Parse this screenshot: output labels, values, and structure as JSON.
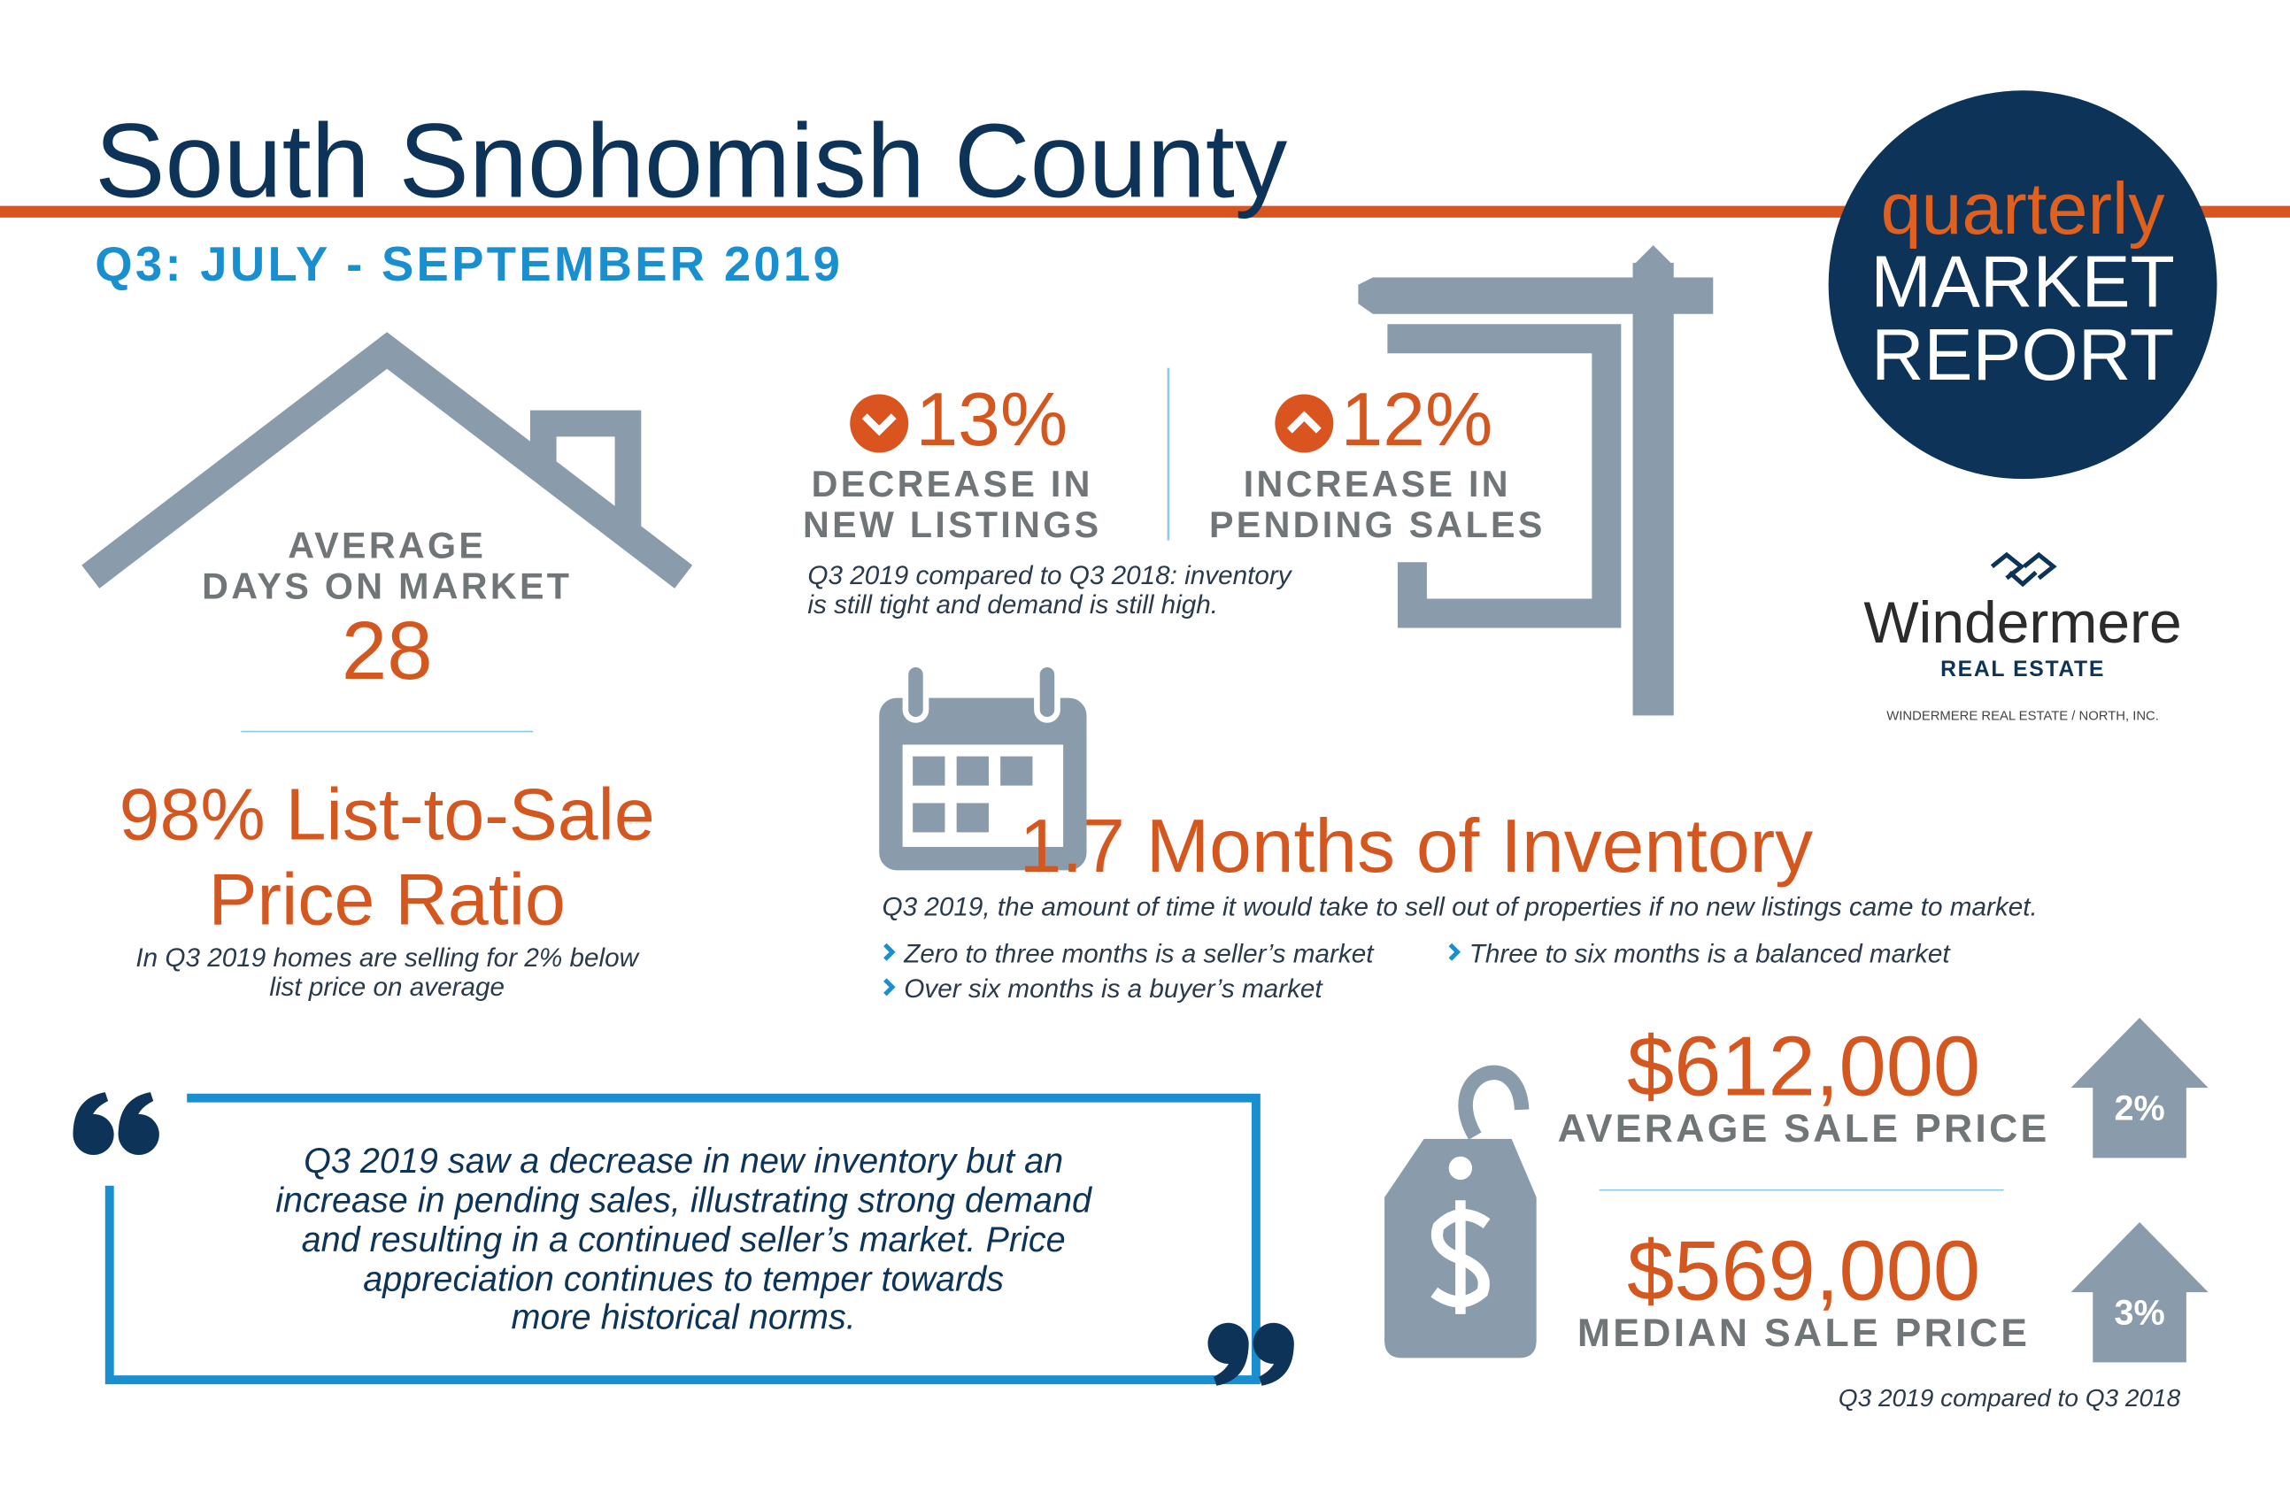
{
  "header": {
    "title": "South Snohomish County",
    "subtitle": "Q3: JULY - SEPTEMBER 2019"
  },
  "badge": {
    "line1": "quarterly",
    "line2": "MARKET",
    "line3": "REPORT"
  },
  "brand": {
    "name": "Windermere",
    "tagline": "REAL ESTATE",
    "office": "WINDERMERE REAL ESTATE / NORTH, INC."
  },
  "days_on_market": {
    "label_line1": "AVERAGE",
    "label_line2": "DAYS ON MARKET",
    "value": "28"
  },
  "list_to_sale": {
    "line1": "98% List-to-Sale",
    "line2": "Price Ratio",
    "note_line1": "In Q3 2019 homes are selling for 2% below",
    "note_line2": "list price on average"
  },
  "listings": [
    {
      "value": "13%",
      "label_line1": "DECREASE IN",
      "label_line2": "NEW LISTINGS"
    },
    {
      "value": "12%",
      "label_line1": "INCREASE IN",
      "label_line2": "PENDING SALES"
    }
  ],
  "listings_note": [
    "Q3 2019 compared to Q3 2018: inventory",
    "is still tight and demand is still high."
  ],
  "inventory": {
    "title": "1.7 Months of Inventory",
    "note": "Q3 2019, the amount of time it would take to sell out of properties if no new listings came to market.",
    "bullets": [
      "Zero to three months is a seller’s market",
      "Three to six months is a balanced market",
      "Over six months is a buyer’s market"
    ]
  },
  "prices": [
    {
      "value": "$612,000",
      "label": "AVERAGE SALE PRICE",
      "change": "2%"
    },
    {
      "value": "$569,000",
      "label": "MEDIAN SALE PRICE",
      "change": "3%"
    }
  ],
  "prices_note": "Q3 2019 compared to Q3 2018",
  "quote": {
    "lines": [
      "Q3 2019 saw a decrease in new inventory but an",
      "increase in pending sales, illustrating strong demand",
      "and resulting in a continued seller’s market. Price",
      "appreciation continues to temper towards",
      "more historical norms."
    ]
  }
}
